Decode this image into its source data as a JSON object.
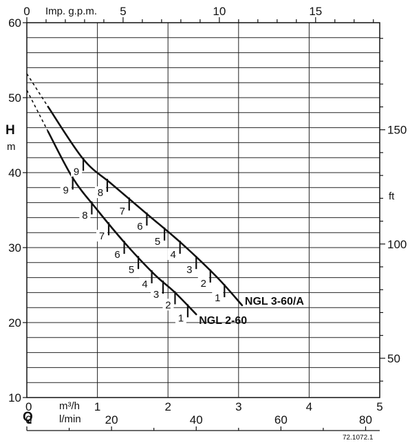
{
  "chart_data": {
    "type": "line",
    "x_unit_top": "Imp. g.p.m.",
    "x_unit_main": "m³/h",
    "x_unit_bottom": "l/min",
    "x_letter": "Q",
    "y_letter": "H",
    "y_unit_left": "m",
    "y_unit_right": "ft",
    "xlim_m3h": [
      0,
      5
    ],
    "ylim_m": [
      10,
      60
    ],
    "x_ticks_m3h": [
      "0",
      "1",
      "2",
      "3",
      "4",
      "5"
    ],
    "x_ticks_lmin": [
      "0",
      "20",
      "40",
      "60",
      "80"
    ],
    "x_ticks_impgpm": [
      "0",
      "5",
      "10",
      "15"
    ],
    "y_ticks_m": [
      "10",
      "20",
      "30",
      "40",
      "50",
      "60"
    ],
    "y_ticks_ft": [
      "50",
      "100",
      "150"
    ],
    "reference_code": "72.1072.1",
    "series": [
      {
        "name": "NGL 3-60/A",
        "dashed_part": [
          [
            0,
            53.2
          ],
          [
            0.3,
            48.8
          ]
        ],
        "points": [
          [
            0.3,
            48.8
          ],
          [
            0.8,
            41.8
          ],
          [
            1.2,
            38.5
          ],
          [
            1.7,
            34.5
          ],
          [
            2.2,
            30.5
          ],
          [
            2.7,
            26
          ],
          [
            3.05,
            22.3
          ]
        ],
        "stages": [
          {
            "label": "9",
            "x": 0.8
          },
          {
            "label": "8",
            "x": 1.14
          },
          {
            "label": "7",
            "x": 1.45
          },
          {
            "label": "6",
            "x": 1.7
          },
          {
            "label": "5",
            "x": 1.95
          },
          {
            "label": "4",
            "x": 2.17
          },
          {
            "label": "3",
            "x": 2.4
          },
          {
            "label": "2",
            "x": 2.6
          },
          {
            "label": "1",
            "x": 2.8
          }
        ]
      },
      {
        "name": "NGL 2-60",
        "dashed_part": [
          [
            0,
            51
          ],
          [
            0.3,
            45.5
          ]
        ],
        "points": [
          [
            0.3,
            45.5
          ],
          [
            0.65,
            39.3
          ],
          [
            1.0,
            35
          ],
          [
            1.4,
            30.5
          ],
          [
            1.8,
            26.5
          ],
          [
            2.1,
            24
          ],
          [
            2.4,
            21.1
          ]
        ],
        "stages": [
          {
            "label": "9",
            "x": 0.65
          },
          {
            "label": "8",
            "x": 0.92
          },
          {
            "label": "7",
            "x": 1.16
          },
          {
            "label": "6",
            "x": 1.38
          },
          {
            "label": "5",
            "x": 1.58
          },
          {
            "label": "4",
            "x": 1.77
          },
          {
            "label": "3",
            "x": 1.93
          },
          {
            "label": "2",
            "x": 2.1
          },
          {
            "label": "1",
            "x": 2.28
          }
        ]
      }
    ]
  }
}
